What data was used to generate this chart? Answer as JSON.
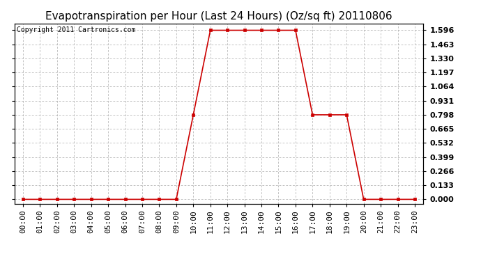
{
  "title": "Evapotranspiration per Hour (Last 24 Hours) (Oz/sq ft) 20110806",
  "copyright": "Copyright 2011 Cartronics.com",
  "hours": [
    "00:00",
    "01:00",
    "02:00",
    "03:00",
    "04:00",
    "05:00",
    "06:00",
    "07:00",
    "08:00",
    "09:00",
    "10:00",
    "11:00",
    "12:00",
    "13:00",
    "14:00",
    "15:00",
    "16:00",
    "17:00",
    "18:00",
    "19:00",
    "20:00",
    "21:00",
    "22:00",
    "23:00"
  ],
  "values": [
    0.0,
    0.0,
    0.0,
    0.0,
    0.0,
    0.0,
    0.0,
    0.0,
    0.0,
    0.0,
    0.798,
    1.596,
    1.596,
    1.596,
    1.596,
    1.596,
    1.596,
    0.798,
    0.798,
    0.798,
    0.0,
    0.0,
    0.0,
    0.0
  ],
  "line_color": "#cc0000",
  "marker": "s",
  "marker_size": 3,
  "background_color": "#ffffff",
  "plot_background": "#ffffff",
  "grid_color": "#aaaaaa",
  "title_fontsize": 11,
  "copyright_fontsize": 7,
  "tick_fontsize": 8,
  "ylim": [
    -0.04,
    1.66
  ],
  "yticks": [
    0.0,
    0.133,
    0.266,
    0.399,
    0.532,
    0.665,
    0.798,
    0.931,
    1.064,
    1.197,
    1.33,
    1.463,
    1.596
  ]
}
